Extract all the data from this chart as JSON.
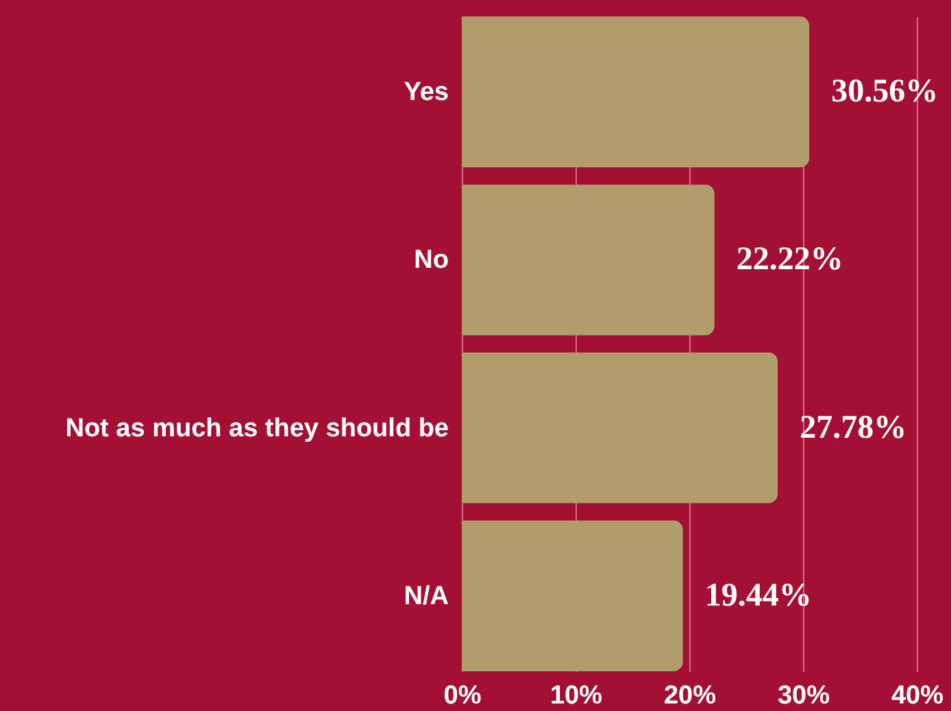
{
  "chart_data": {
    "type": "bar",
    "orientation": "horizontal",
    "categories": [
      "Yes",
      "No",
      "Not as much as they should be",
      "N/A"
    ],
    "values": [
      30.56,
      22.22,
      27.78,
      19.44
    ],
    "value_labels": [
      "30.56%",
      "22.22%",
      "27.78%",
      "19.44%"
    ],
    "color": "#b29d6c",
    "xlim": [
      0,
      40
    ],
    "xticks": [
      {
        "value": 0,
        "label": "0%"
      },
      {
        "value": 10,
        "label": "10%"
      },
      {
        "value": 20,
        "label": "20%"
      },
      {
        "value": 30,
        "label": "30%"
      },
      {
        "value": 40,
        "label": "40%"
      }
    ],
    "grid": "x"
  }
}
